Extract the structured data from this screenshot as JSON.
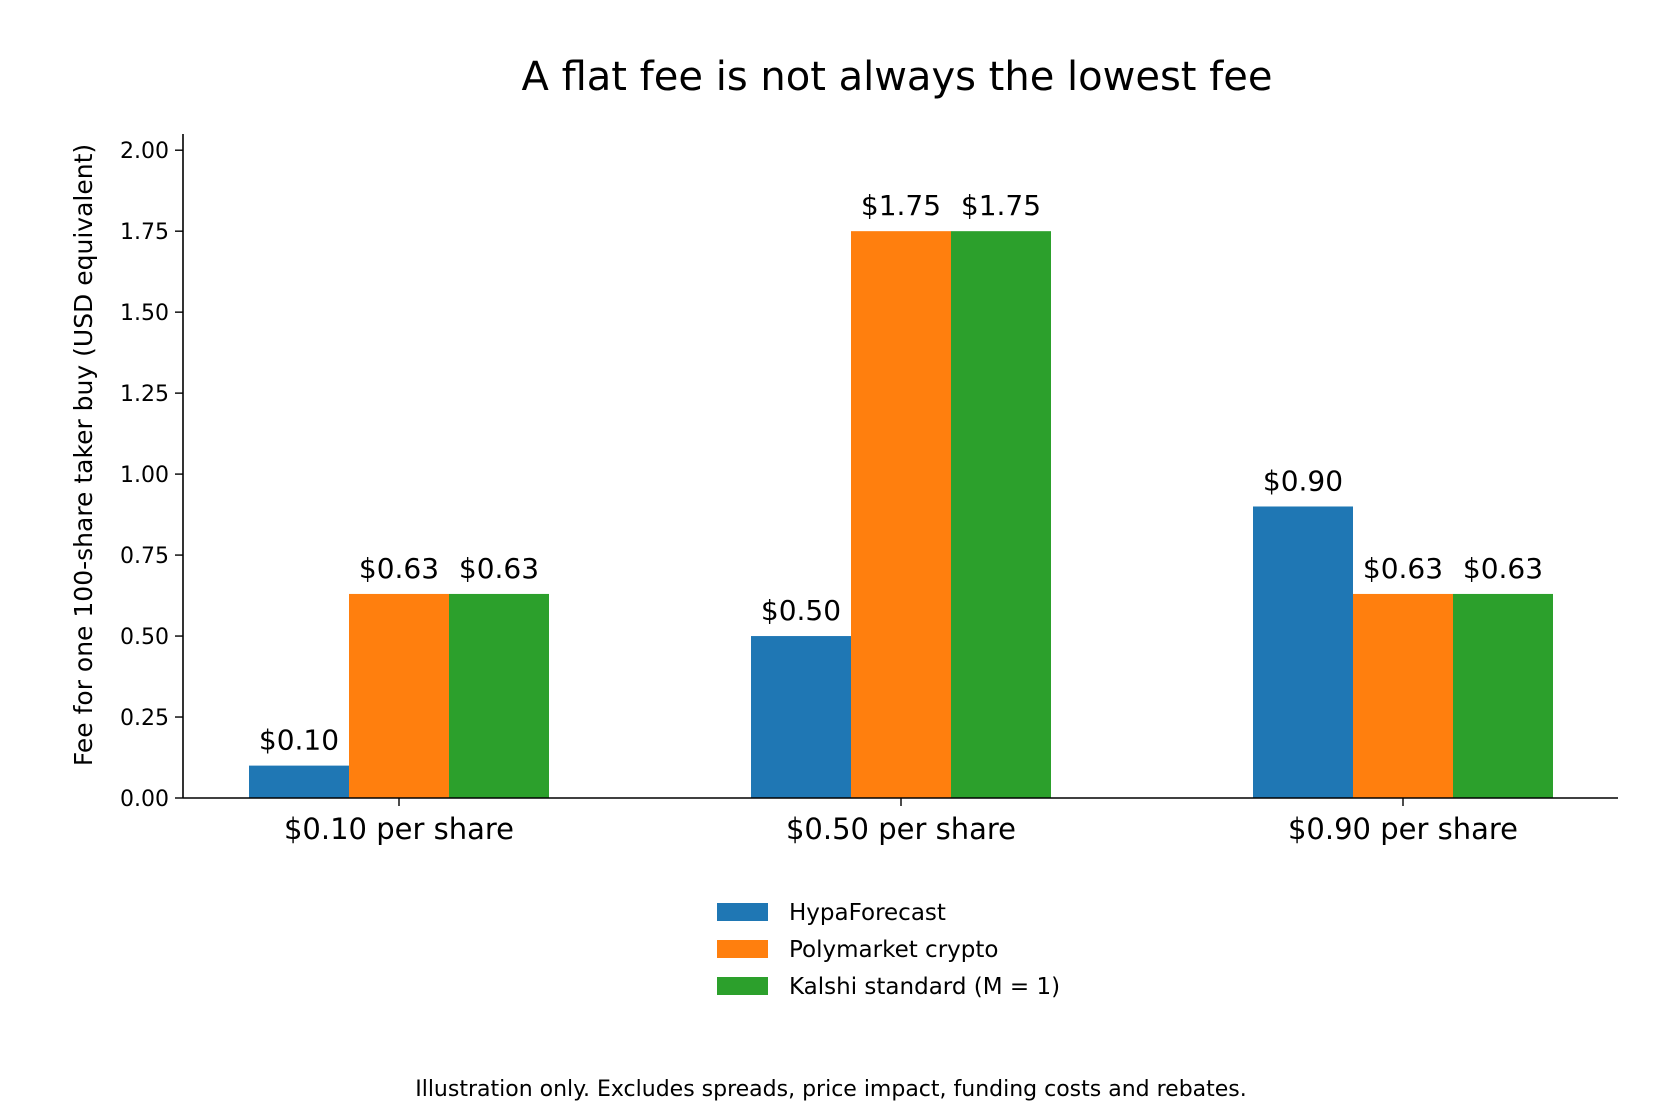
{
  "chart_data": {
    "type": "bar",
    "title": "A flat fee is not always the lowest fee",
    "xlabel": "",
    "ylabel": "Fee for one 100-share taker buy (USD equivalent)",
    "categories": [
      "$0.10 per share",
      "$0.50 per share",
      "$0.90 per share"
    ],
    "ylim": [
      0,
      2.05
    ],
    "yticks": [
      0,
      0.25,
      0.5,
      0.75,
      1.0,
      1.25,
      1.5,
      1.75,
      2.0
    ],
    "ytick_labels": [
      "0.00",
      "0.25",
      "0.50",
      "0.75",
      "1.00",
      "1.25",
      "1.50",
      "1.75",
      "2.00"
    ],
    "series": [
      {
        "name": "HypaForecast",
        "color": "#1f77b4",
        "values": [
          0.1,
          0.5,
          0.9
        ],
        "labels": [
          "$0.10",
          "$0.50",
          "$0.90"
        ]
      },
      {
        "name": "Polymarket crypto",
        "color": "#ff7f0e",
        "values": [
          0.63,
          1.75,
          0.63
        ],
        "labels": [
          "$0.63",
          "$1.75",
          "$0.63"
        ]
      },
      {
        "name": "Kalshi standard (M = 1)",
        "color": "#2ca02c",
        "values": [
          0.63,
          1.75,
          0.63
        ],
        "labels": [
          "$0.63",
          "$1.75",
          "$0.63"
        ]
      }
    ],
    "grid": false,
    "legend": "bottom-center",
    "footnote": "Illustration only. Excludes spreads, price impact, funding costs and rebates."
  }
}
